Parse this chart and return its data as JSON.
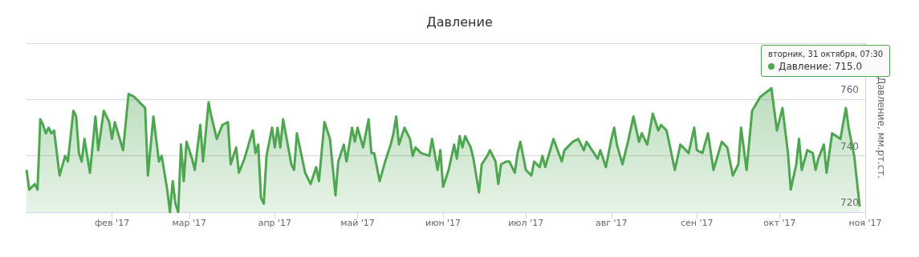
{
  "chart_data": {
    "type": "area",
    "title": "Давление",
    "y2label": "Давление, мм.рт.ст.",
    "annotations": [
      "вторник, 31 октября, 07:30",
      "Давление: 715.0"
    ],
    "xlim": [
      "2017-01-01",
      "2017-11-01"
    ],
    "xticks": [
      {
        "value": "2017-02-01",
        "label": "фев '17"
      },
      {
        "value": "2017-03-01",
        "label": "мар '17"
      },
      {
        "value": "2017-04-01",
        "label": "апр '17"
      },
      {
        "value": "2017-05-01",
        "label": "май '17"
      },
      {
        "value": "2017-06-01",
        "label": "июн '17"
      },
      {
        "value": "2017-07-01",
        "label": "июл '17"
      },
      {
        "value": "2017-08-01",
        "label": "авг '17"
      },
      {
        "value": "2017-09-01",
        "label": "сен '17"
      },
      {
        "value": "2017-10-01",
        "label": "окт '17"
      },
      {
        "value": "2017-11-01",
        "label": "ноя '17"
      }
    ],
    "ylim": [
      720,
      780
    ],
    "yticks": [
      720,
      740,
      760,
      {
        "value": 780,
        "label": null
      }
    ],
    "grid": "y",
    "x": [
      "2017-01-01",
      "2017-01-02",
      "2017-01-04",
      "2017-01-05",
      "2017-01-06",
      "2017-01-07",
      "2017-01-08",
      "2017-01-09",
      "2017-01-10",
      "2017-01-11",
      "2017-01-13",
      "2017-01-15",
      "2017-01-16",
      "2017-01-18",
      "2017-01-19",
      "2017-01-20",
      "2017-01-21",
      "2017-01-22",
      "2017-01-24",
      "2017-01-26",
      "2017-01-27",
      "2017-01-29",
      "2017-01-31",
      "2017-02-01",
      "2017-02-02",
      "2017-02-05",
      "2017-02-07",
      "2017-02-09",
      "2017-02-11",
      "2017-02-13",
      "2017-02-14",
      "2017-02-16",
      "2017-02-18",
      "2017-02-19",
      "2017-02-21",
      "2017-02-22",
      "2017-02-23",
      "2017-02-24",
      "2017-02-25",
      "2017-02-26",
      "2017-02-27",
      "2017-02-28",
      "2017-03-02",
      "2017-03-03",
      "2017-03-05",
      "2017-03-06",
      "2017-03-08",
      "2017-03-09",
      "2017-03-11",
      "2017-03-13",
      "2017-03-15",
      "2017-03-16",
      "2017-03-18",
      "2017-03-19",
      "2017-03-21",
      "2017-03-24",
      "2017-03-25",
      "2017-03-26",
      "2017-03-27",
      "2017-03-28",
      "2017-03-29",
      "2017-03-31",
      "2017-04-01",
      "2017-04-02",
      "2017-04-03",
      "2017-04-04",
      "2017-04-07",
      "2017-04-08",
      "2017-04-09",
      "2017-04-12",
      "2017-04-14",
      "2017-04-16",
      "2017-04-17",
      "2017-04-19",
      "2017-04-21",
      "2017-04-23",
      "2017-04-24",
      "2017-04-26",
      "2017-04-27",
      "2017-04-29",
      "2017-04-30",
      "2017-05-01",
      "2017-05-03",
      "2017-05-05",
      "2017-05-06",
      "2017-05-07",
      "2017-05-09",
      "2017-05-11",
      "2017-05-13",
      "2017-05-14",
      "2017-05-15",
      "2017-05-16",
      "2017-05-18",
      "2017-05-20",
      "2017-05-21",
      "2017-05-22",
      "2017-05-24",
      "2017-05-27",
      "2017-05-28",
      "2017-05-30",
      "2017-05-31",
      "2017-06-01",
      "2017-06-03",
      "2017-06-05",
      "2017-06-06",
      "2017-06-07",
      "2017-06-08",
      "2017-06-09",
      "2017-06-11",
      "2017-06-12",
      "2017-06-14",
      "2017-06-15",
      "2017-06-17",
      "2017-06-18",
      "2017-06-20",
      "2017-06-21",
      "2017-06-22",
      "2017-06-24",
      "2017-06-25",
      "2017-06-27",
      "2017-06-28",
      "2017-06-29",
      "2017-07-01",
      "2017-07-03",
      "2017-07-04",
      "2017-07-06",
      "2017-07-07",
      "2017-07-08",
      "2017-07-11",
      "2017-07-14",
      "2017-07-15",
      "2017-07-18",
      "2017-07-20",
      "2017-07-22",
      "2017-07-23",
      "2017-07-27",
      "2017-07-28",
      "2017-07-30",
      "2017-08-01",
      "2017-08-02",
      "2017-08-03",
      "2017-08-05",
      "2017-08-07",
      "2017-08-09",
      "2017-08-11",
      "2017-08-12",
      "2017-08-14",
      "2017-08-16",
      "2017-08-18",
      "2017-08-19",
      "2017-08-21",
      "2017-08-24",
      "2017-08-26",
      "2017-08-29",
      "2017-08-31",
      "2017-09-01",
      "2017-09-03",
      "2017-09-05",
      "2017-09-07",
      "2017-09-10",
      "2017-09-12",
      "2017-09-14",
      "2017-09-16",
      "2017-09-17",
      "2017-09-19",
      "2017-09-21",
      "2017-09-24",
      "2017-09-28",
      "2017-09-30",
      "2017-10-02",
      "2017-10-04",
      "2017-10-05",
      "2017-10-07",
      "2017-10-08",
      "2017-10-09",
      "2017-10-11",
      "2017-10-13",
      "2017-10-14",
      "2017-10-15",
      "2017-10-17",
      "2017-10-18",
      "2017-10-20",
      "2017-10-23",
      "2017-10-25",
      "2017-10-26",
      "2017-10-28",
      "2017-10-29",
      "2017-10-30"
    ],
    "series": [
      {
        "color": "#4ea651",
        "values": [
          735,
          728,
          730,
          728,
          753,
          751,
          748,
          750,
          748,
          749,
          733,
          740,
          738,
          756,
          754,
          741,
          738,
          746,
          734,
          754,
          742,
          756,
          752,
          746,
          752,
          742,
          762,
          761,
          759,
          757,
          733,
          754,
          738,
          740,
          728,
          720,
          731,
          723,
          720,
          744,
          731,
          745,
          739,
          735,
          751,
          738,
          759,
          754,
          746,
          751,
          752,
          737,
          743,
          734,
          739,
          749,
          741,
          744,
          725,
          723,
          740,
          750,
          743,
          750,
          743,
          753,
          737,
          735,
          748,
          734,
          730,
          736,
          731,
          752,
          746,
          726,
          738,
          744,
          738,
          750,
          745,
          750,
          743,
          753,
          741,
          741,
          731,
          738,
          744,
          748,
          754,
          744,
          750,
          746,
          740,
          743,
          741,
          740,
          746,
          735,
          742,
          729,
          735,
          744,
          739,
          747,
          743,
          747,
          743,
          739,
          727,
          737,
          740,
          742,
          738,
          730,
          737,
          738,
          738,
          734,
          741,
          745,
          735,
          733,
          738,
          736,
          740,
          736,
          746,
          738,
          742,
          745,
          746,
          742,
          745,
          739,
          742,
          736,
          746,
          750,
          744,
          737,
          745,
          754,
          745,
          748,
          744,
          755,
          749,
          751,
          749,
          735,
          744,
          741,
          750,
          742,
          741,
          748,
          735,
          745,
          743,
          733,
          737,
          750,
          735,
          756,
          761,
          764,
          749,
          757,
          741,
          728,
          737,
          746,
          735,
          742,
          741,
          735,
          739,
          744,
          734,
          748,
          746,
          757,
          750,
          740,
          731,
          722
        ]
      }
    ]
  }
}
